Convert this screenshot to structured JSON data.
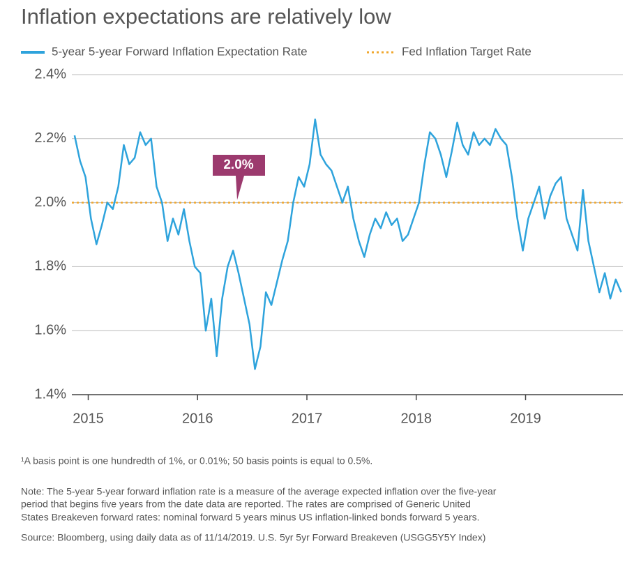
{
  "chart_data": {
    "type": "line",
    "title": "Inflation expectations are relatively low",
    "series": [
      {
        "name": "5-year 5-year Forward Inflation Expectation Rate",
        "color": "#2ea3dc",
        "values": [
          2.21,
          2.13,
          2.08,
          1.95,
          1.87,
          1.93,
          2.0,
          1.98,
          2.05,
          2.18,
          2.12,
          2.14,
          2.22,
          2.18,
          2.2,
          2.05,
          2.0,
          1.88,
          1.95,
          1.9,
          1.98,
          1.88,
          1.8,
          1.78,
          1.6,
          1.7,
          1.52,
          1.7,
          1.8,
          1.85,
          1.78,
          1.7,
          1.62,
          1.48,
          1.55,
          1.72,
          1.68,
          1.75,
          1.82,
          1.88,
          2.0,
          2.08,
          2.05,
          2.12,
          2.26,
          2.15,
          2.12,
          2.1,
          2.05,
          2.0,
          2.05,
          1.95,
          1.88,
          1.83,
          1.9,
          1.95,
          1.92,
          1.97,
          1.93,
          1.95,
          1.88,
          1.9,
          1.95,
          2.0,
          2.12,
          2.22,
          2.2,
          2.15,
          2.08,
          2.16,
          2.25,
          2.18,
          2.15,
          2.22,
          2.18,
          2.2,
          2.18,
          2.23,
          2.2,
          2.18,
          2.08,
          1.95,
          1.85,
          1.95,
          2.0,
          2.05,
          1.95,
          2.02,
          2.06,
          2.08,
          1.95,
          1.9,
          1.85,
          2.04,
          1.88,
          1.8,
          1.72,
          1.78,
          1.7,
          1.76,
          1.72
        ]
      }
    ],
    "x": [
      2014.875,
      2014.925,
      2014.975,
      2015.025,
      2015.075,
      2015.125,
      2015.175,
      2015.225,
      2015.275,
      2015.325,
      2015.375,
      2015.425,
      2015.475,
      2015.525,
      2015.575,
      2015.625,
      2015.675,
      2015.725,
      2015.775,
      2015.825,
      2015.875,
      2015.925,
      2015.975,
      2016.025,
      2016.075,
      2016.125,
      2016.175,
      2016.225,
      2016.275,
      2016.325,
      2016.375,
      2016.425,
      2016.475,
      2016.525,
      2016.575,
      2016.625,
      2016.675,
      2016.725,
      2016.775,
      2016.825,
      2016.875,
      2016.925,
      2016.975,
      2017.025,
      2017.075,
      2017.125,
      2017.175,
      2017.225,
      2017.275,
      2017.325,
      2017.375,
      2017.425,
      2017.475,
      2017.525,
      2017.575,
      2017.625,
      2017.675,
      2017.725,
      2017.775,
      2017.825,
      2017.875,
      2017.925,
      2017.975,
      2018.025,
      2018.075,
      2018.125,
      2018.175,
      2018.225,
      2018.275,
      2018.325,
      2018.375,
      2018.425,
      2018.475,
      2018.525,
      2018.575,
      2018.625,
      2018.675,
      2018.725,
      2018.775,
      2018.825,
      2018.875,
      2018.925,
      2018.975,
      2019.025,
      2019.075,
      2019.125,
      2019.175,
      2019.225,
      2019.275,
      2019.325,
      2019.375,
      2019.425,
      2019.475,
      2019.525,
      2019.575,
      2019.625,
      2019.675,
      2019.725,
      2019.775,
      2019.825,
      2019.875
    ],
    "target": {
      "name": "Fed Inflation Target Rate",
      "value": 2.0,
      "label": "2.0%",
      "color": "#f0a830",
      "label_color": "#9c3a6e"
    },
    "xlim": [
      2014.85,
      2019.89
    ],
    "xticks": [
      2015,
      2016,
      2017,
      2018,
      2019
    ],
    "ylim": [
      1.4,
      2.4
    ],
    "yticks": [
      {
        "value": 1.4,
        "label": "1.4%"
      },
      {
        "value": 1.6,
        "label": "1.6%"
      },
      {
        "value": 1.8,
        "label": "1.8%"
      },
      {
        "value": 2.0,
        "label": "2.0%"
      },
      {
        "value": 2.2,
        "label": "2.2%"
      },
      {
        "value": 2.4,
        "label": "2.4%"
      }
    ],
    "grid": true,
    "notes": [
      "¹A basis point is one hundredth of 1%, or 0.01%; 50 basis points is equal to 0.5%.",
      "Note: The 5-year 5-year forward inflation rate is a measure of the average expected inflation over the five-year",
      "period that begins five years from the date data are reported. The rates are comprised of Generic United",
      "States Breakeven forward rates: nominal forward 5 years minus US inflation-linked bonds forward 5 years.",
      "Source: Bloomberg, using daily data as of 11/14/2019. U.S. 5yr 5yr Forward Breakeven (USGG5Y5Y Index)"
    ]
  }
}
